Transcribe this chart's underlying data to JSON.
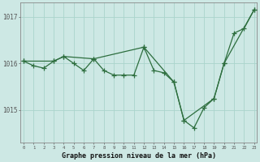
{
  "bg_color": "#cde8e4",
  "grid_color": "#aad4cc",
  "line_color": "#2d6e3e",
  "xlabel": "Graphe pression niveau de la mer (hPa)",
  "ylim": [
    1014.3,
    1017.3
  ],
  "xlim": [
    -0.3,
    23.3
  ],
  "series1_x": [
    0,
    1,
    2,
    3,
    4,
    5,
    6,
    7,
    8,
    9,
    10,
    11,
    12,
    13,
    14,
    15,
    16,
    17,
    18,
    19,
    20,
    21,
    22,
    23
  ],
  "series1_y": [
    1016.05,
    1015.95,
    1015.9,
    1016.05,
    1016.15,
    1016.0,
    1015.85,
    1016.1,
    1015.85,
    1015.75,
    1015.75,
    1015.75,
    1016.35,
    1015.85,
    1015.8,
    1015.6,
    1014.78,
    1014.62,
    1015.05,
    1015.25,
    1016.0,
    1016.65,
    1016.75,
    1017.15
  ],
  "series2_x": [
    0,
    3,
    4,
    7,
    12,
    15,
    16,
    19,
    20,
    23
  ],
  "series2_y": [
    1016.05,
    1016.05,
    1016.15,
    1016.1,
    1016.35,
    1015.6,
    1014.78,
    1015.25,
    1016.0,
    1017.15
  ],
  "yticks": [
    1015,
    1016,
    1017
  ],
  "ytick_labels": [
    "1015",
    "1016",
    "1017"
  ]
}
